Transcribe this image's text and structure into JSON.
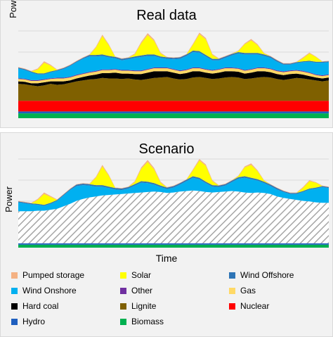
{
  "chart_data": [
    {
      "type": "area",
      "title": "Real data",
      "xlabel": "",
      "ylabel": "Power",
      "grid": true,
      "stacked": true,
      "x_samples": 49,
      "series": [
        {
          "name": "Biomass",
          "color": "#00b050",
          "values": [
            1,
            1,
            1,
            1,
            1,
            1,
            1,
            1,
            1,
            1,
            1,
            1,
            1,
            1,
            1,
            1,
            1,
            1,
            1,
            1,
            1,
            1,
            1,
            1,
            1,
            1,
            1,
            1,
            1,
            1,
            1,
            1,
            1,
            1,
            1,
            1,
            1,
            1,
            1,
            1,
            1,
            1,
            1,
            1,
            1,
            1,
            1,
            1,
            1
          ]
        },
        {
          "name": "Hydro",
          "color": "#1f5fbf",
          "values": [
            0.4,
            0.4,
            0.4,
            0.4,
            0.4,
            0.4,
            0.4,
            0.4,
            0.4,
            0.4,
            0.4,
            0.4,
            0.4,
            0.4,
            0.4,
            0.4,
            0.4,
            0.4,
            0.4,
            0.4,
            0.4,
            0.4,
            0.4,
            0.4,
            0.4,
            0.4,
            0.4,
            0.4,
            0.4,
            0.4,
            0.4,
            0.4,
            0.4,
            0.4,
            0.4,
            0.4,
            0.4,
            0.4,
            0.4,
            0.4,
            0.4,
            0.4,
            0.4,
            0.4,
            0.4,
            0.4,
            0.4,
            0.4,
            0.4
          ]
        },
        {
          "name": "Nuclear",
          "color": "#ff0000",
          "values": [
            2.2,
            2.2,
            2.2,
            2.2,
            2.2,
            2.2,
            2.2,
            2.2,
            2.2,
            2.2,
            2.2,
            2.2,
            2.2,
            2.2,
            2.2,
            2.2,
            2.2,
            2.2,
            2.2,
            2.2,
            2.2,
            2.2,
            2.2,
            2.2,
            2.2,
            2.2,
            2.2,
            2.2,
            2.2,
            2.2,
            2.2,
            2.2,
            2.2,
            2.2,
            2.2,
            2.2,
            2.2,
            2.2,
            2.2,
            2.2,
            2.2,
            2.2,
            2.2,
            2.2,
            2.2,
            2.2,
            2.2,
            2.2,
            2.2
          ]
        },
        {
          "name": "Lignite",
          "color": "#7f6000",
          "values": [
            3.5,
            3.4,
            3.2,
            3.0,
            3.2,
            3.5,
            3.3,
            3.4,
            3.7,
            4.0,
            4.2,
            4.4,
            4.5,
            4.7,
            4.6,
            4.6,
            4.5,
            4.6,
            4.4,
            4.3,
            4.5,
            4.7,
            4.8,
            4.9,
            4.6,
            4.4,
            4.5,
            4.8,
            4.9,
            4.7,
            4.5,
            4.6,
            4.8,
            4.9,
            4.8,
            4.5,
            4.6,
            4.8,
            4.9,
            4.8,
            4.5,
            4.3,
            4.5,
            4.7,
            4.6,
            4.4,
            4.2,
            4.0,
            4.2
          ]
        },
        {
          "name": "Hard coal",
          "color": "#000000",
          "values": [
            0.5,
            0.5,
            0.4,
            0.6,
            0.6,
            0.5,
            0.7,
            0.6,
            0.5,
            0.6,
            0.7,
            0.8,
            0.9,
            1.0,
            1.1,
            1.2,
            1.1,
            1.0,
            1.1,
            1.2,
            1.3,
            1.4,
            1.3,
            1.2,
            1.2,
            1.1,
            1.2,
            1.3,
            1.2,
            1.1,
            1.1,
            1.2,
            1.3,
            1.2,
            1.2,
            1.1,
            1.2,
            1.3,
            1.2,
            1.1,
            1.0,
            1.0,
            1.0,
            0.9,
            0.8,
            0.7,
            0.6,
            0.6,
            0.6
          ]
        },
        {
          "name": "Gas",
          "color": "#ffd966",
          "values": [
            0.5,
            0.5,
            0.5,
            0.5,
            0.5,
            0.5,
            0.6,
            0.6,
            0.6,
            0.6,
            0.6,
            0.6,
            0.6,
            0.6,
            0.6,
            0.6,
            0.6,
            0.6,
            0.6,
            0.6,
            0.6,
            0.6,
            0.6,
            0.6,
            0.6,
            0.6,
            0.6,
            0.6,
            0.6,
            0.6,
            0.6,
            0.6,
            0.6,
            0.6,
            0.6,
            0.6,
            0.6,
            0.6,
            0.6,
            0.6,
            0.6,
            0.6,
            0.6,
            0.6,
            0.6,
            0.6,
            0.5,
            0.5,
            0.5
          ]
        },
        {
          "name": "Other",
          "color": "#7030a0",
          "values": [
            0.15,
            0.15,
            0.15,
            0.15,
            0.15,
            0.15,
            0.15,
            0.15,
            0.15,
            0.15,
            0.15,
            0.15,
            0.15,
            0.15,
            0.15,
            0.15,
            0.15,
            0.15,
            0.15,
            0.15,
            0.15,
            0.15,
            0.15,
            0.15,
            0.15,
            0.15,
            0.15,
            0.15,
            0.15,
            0.15,
            0.15,
            0.15,
            0.15,
            0.15,
            0.15,
            0.15,
            0.15,
            0.15,
            0.15,
            0.15,
            0.15,
            0.15,
            0.15,
            0.15,
            0.15,
            0.15,
            0.15,
            0.15,
            0.15
          ]
        },
        {
          "name": "Wind Onshore",
          "color": "#00b0f0",
          "values": [
            2.0,
            1.8,
            1.6,
            1.2,
            1.0,
            1.2,
            1.4,
            1.8,
            2.2,
            2.6,
            3.0,
            3.2,
            3.0,
            2.8,
            2.5,
            2.2,
            2.0,
            2.2,
            2.6,
            2.8,
            2.7,
            2.4,
            2.0,
            1.8,
            2.0,
            2.4,
            2.8,
            3.2,
            3.1,
            2.6,
            2.0,
            1.8,
            2.0,
            2.5,
            3.0,
            3.2,
            3.0,
            2.7,
            2.4,
            2.2,
            1.8,
            1.4,
            1.2,
            1.4,
            1.8,
            2.2,
            2.4,
            2.6,
            2.5
          ]
        },
        {
          "name": "Wind Offshore",
          "color": "#2e75b6",
          "values": [
            0.2,
            0.2,
            0.2,
            0.2,
            0.2,
            0.2,
            0.2,
            0.2,
            0.2,
            0.2,
            0.2,
            0.3,
            0.3,
            0.3,
            0.3,
            0.3,
            0.3,
            0.3,
            0.3,
            0.3,
            0.3,
            0.3,
            0.3,
            0.3,
            0.3,
            0.3,
            0.3,
            0.3,
            0.3,
            0.3,
            0.3,
            0.3,
            0.3,
            0.3,
            0.3,
            0.3,
            0.3,
            0.3,
            0.3,
            0.3,
            0.3,
            0.2,
            0.2,
            0.2,
            0.2,
            0.2,
            0.2,
            0.2,
            0.2
          ]
        },
        {
          "name": "Solar",
          "color": "#ffff00",
          "values": [
            0,
            0,
            0,
            0.8,
            2.2,
            1.2,
            0,
            0,
            0,
            0,
            0,
            0,
            1.5,
            3.8,
            2.2,
            0,
            0,
            0,
            0.4,
            2.5,
            4.0,
            2.8,
            0.6,
            0,
            0,
            0,
            0,
            1.2,
            3.5,
            3.2,
            0.8,
            0,
            0,
            0,
            0.2,
            1.8,
            2.6,
            1.6,
            0.2,
            0,
            0,
            0,
            0,
            0,
            0.6,
            1.5,
            1.0,
            0,
            0
          ]
        },
        {
          "name": "Pumped storage",
          "color": "#f4b183",
          "values": [
            0.1,
            0.1,
            0.1,
            0.2,
            0.3,
            0.2,
            0.1,
            0.1,
            0.1,
            0.1,
            0.1,
            0.1,
            0.2,
            0.3,
            0.2,
            0.1,
            0.1,
            0.1,
            0.2,
            0.3,
            0.4,
            0.3,
            0.2,
            0.1,
            0.1,
            0.1,
            0.1,
            0.2,
            0.3,
            0.3,
            0.2,
            0.1,
            0.1,
            0.1,
            0.1,
            0.2,
            0.3,
            0.2,
            0.1,
            0.1,
            0.1,
            0.1,
            0.1,
            0.1,
            0.2,
            0.2,
            0.1,
            0.1,
            0.1
          ]
        }
      ],
      "ylim": [
        0,
        18
      ]
    },
    {
      "type": "area",
      "title": "Scenario",
      "xlabel": "Time",
      "ylabel": "Power",
      "grid": true,
      "stacked": true,
      "x_samples": 49,
      "series": [
        {
          "name": "Biomass",
          "color": "#00b050",
          "values": [
            0.6,
            0.6,
            0.6,
            0.6,
            0.6,
            0.6,
            0.6,
            0.6,
            0.6,
            0.6,
            0.6,
            0.6,
            0.6,
            0.6,
            0.6,
            0.6,
            0.6,
            0.6,
            0.6,
            0.6,
            0.6,
            0.6,
            0.6,
            0.6,
            0.6,
            0.6,
            0.6,
            0.6,
            0.6,
            0.6,
            0.6,
            0.6,
            0.6,
            0.6,
            0.6,
            0.6,
            0.6,
            0.6,
            0.6,
            0.6,
            0.6,
            0.6,
            0.6,
            0.6,
            0.6,
            0.6,
            0.6,
            0.6,
            0.6
          ]
        },
        {
          "name": "Hydro",
          "color": "#1f5fbf",
          "values": [
            0.3,
            0.3,
            0.3,
            0.3,
            0.3,
            0.3,
            0.3,
            0.3,
            0.3,
            0.3,
            0.3,
            0.3,
            0.3,
            0.3,
            0.3,
            0.3,
            0.3,
            0.3,
            0.3,
            0.3,
            0.3,
            0.3,
            0.3,
            0.3,
            0.3,
            0.3,
            0.3,
            0.3,
            0.3,
            0.3,
            0.3,
            0.3,
            0.3,
            0.3,
            0.3,
            0.3,
            0.3,
            0.3,
            0.3,
            0.3,
            0.3,
            0.3,
            0.3,
            0.3,
            0.3,
            0.3,
            0.3,
            0.3,
            0.3
          ]
        },
        {
          "name": "",
          "color": "#a6a6a6",
          "pattern": "hatched",
          "values": [
            6.5,
            6.5,
            6.5,
            6.6,
            6.6,
            6.8,
            7.0,
            7.5,
            8.0,
            8.6,
            9.0,
            9.3,
            9.5,
            9.7,
            9.8,
            9.9,
            10.0,
            10.1,
            10.2,
            10.3,
            10.4,
            10.5,
            10.4,
            10.2,
            10.3,
            10.5,
            10.6,
            10.7,
            10.6,
            10.4,
            10.3,
            10.4,
            10.5,
            10.6,
            10.5,
            10.3,
            10.2,
            10.3,
            10.2,
            10.0,
            9.5,
            9.2,
            9.0,
            8.8,
            8.6,
            8.5,
            8.3,
            8.2,
            8.2
          ]
        },
        {
          "name": "Wind Onshore",
          "color": "#00b0f0",
          "values": [
            1.8,
            1.6,
            1.4,
            1.2,
            1.0,
            1.2,
            1.6,
            2.2,
            2.8,
            3.0,
            2.8,
            2.4,
            2.0,
            1.8,
            1.4,
            1.0,
            0.8,
            1.0,
            1.5,
            2.0,
            1.8,
            1.4,
            1.0,
            0.8,
            1.0,
            1.4,
            2.0,
            2.6,
            2.4,
            1.8,
            1.2,
            1.0,
            1.2,
            1.8,
            2.6,
            3.0,
            2.8,
            2.4,
            2.0,
            1.6,
            1.4,
            1.2,
            1.0,
            1.2,
            1.8,
            2.4,
            2.8,
            3.2,
            3.0
          ]
        },
        {
          "name": "Wind Offshore",
          "color": "#2e75b6",
          "values": [
            0.2,
            0.2,
            0.2,
            0.2,
            0.2,
            0.2,
            0.2,
            0.2,
            0.2,
            0.3,
            0.3,
            0.3,
            0.3,
            0.3,
            0.3,
            0.3,
            0.3,
            0.3,
            0.3,
            0.3,
            0.3,
            0.3,
            0.3,
            0.3,
            0.3,
            0.3,
            0.3,
            0.3,
            0.3,
            0.3,
            0.3,
            0.3,
            0.3,
            0.3,
            0.3,
            0.3,
            0.3,
            0.3,
            0.3,
            0.3,
            0.3,
            0.2,
            0.2,
            0.2,
            0.2,
            0.2,
            0.2,
            0.2,
            0.2
          ]
        },
        {
          "name": "Solar",
          "color": "#ffff00",
          "values": [
            0,
            0,
            0,
            0.8,
            2.2,
            1.2,
            0,
            0,
            0,
            0,
            0,
            0,
            1.5,
            3.8,
            2.2,
            0,
            0,
            0,
            0.4,
            2.5,
            4.0,
            2.8,
            0.6,
            0,
            0,
            0,
            0,
            1.2,
            3.5,
            3.2,
            0.8,
            0,
            0,
            0,
            0.2,
            1.8,
            2.6,
            1.6,
            0.2,
            0,
            0,
            0,
            0,
            0,
            0.6,
            1.5,
            1.0,
            0,
            0
          ]
        },
        {
          "name": "Pumped storage",
          "color": "#f4b183",
          "values": [
            0.1,
            0.1,
            0.1,
            0.2,
            0.3,
            0.2,
            0.1,
            0.1,
            0.1,
            0.1,
            0.1,
            0.1,
            0.2,
            0.3,
            0.2,
            0.1,
            0.1,
            0.1,
            0.2,
            0.3,
            0.4,
            0.3,
            0.2,
            0.1,
            0.1,
            0.1,
            0.1,
            0.2,
            0.3,
            0.3,
            0.2,
            0.1,
            0.1,
            0.1,
            0.1,
            0.2,
            0.3,
            0.2,
            0.1,
            0.1,
            0.1,
            0.1,
            0.1,
            0.1,
            0.2,
            0.2,
            0.1,
            0.1,
            0.1
          ]
        }
      ],
      "ylim": [
        0,
        18
      ]
    }
  ],
  "legend": [
    {
      "label": "Pumped storage",
      "color": "#f4b183"
    },
    {
      "label": "Solar",
      "color": "#ffff00"
    },
    {
      "label": "Wind Offshore",
      "color": "#2e75b6"
    },
    {
      "label": "Wind Onshore",
      "color": "#00b0f0"
    },
    {
      "label": "Other",
      "color": "#7030a0"
    },
    {
      "label": "Gas",
      "color": "#ffd966"
    },
    {
      "label": "Hard coal",
      "color": "#000000"
    },
    {
      "label": "Lignite",
      "color": "#7f6000"
    },
    {
      "label": "Nuclear",
      "color": "#ff0000"
    },
    {
      "label": "Hydro",
      "color": "#1f5fbf"
    },
    {
      "label": "Biomass",
      "color": "#00b050"
    }
  ]
}
